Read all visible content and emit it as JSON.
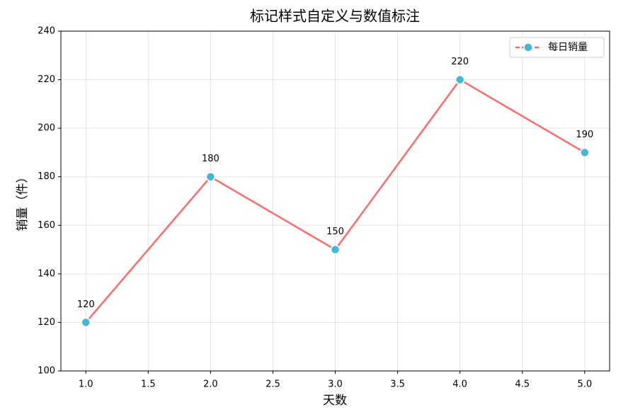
{
  "chart_data": {
    "type": "line",
    "title": "标记样式自定义与数值标注",
    "x_label": "天数",
    "y_label": "销量（件）",
    "x": [
      1,
      2,
      3,
      4,
      5
    ],
    "series": [
      {
        "name": "每日销量",
        "color": "#ff6b6b",
        "marker_color": "#45b7d1",
        "values": [
          120,
          180,
          150,
          220,
          190
        ]
      }
    ],
    "xlim": [
      0.8,
      5.2
    ],
    "xticks": [
      {
        "value": 1,
        "label": "1.0"
      },
      {
        "value": 1.5,
        "label": "1.5"
      },
      {
        "value": 2,
        "label": "2.0"
      },
      {
        "value": 2.5,
        "label": "2.5"
      },
      {
        "value": 3,
        "label": "3.0"
      },
      {
        "value": 3.5,
        "label": "3.5"
      },
      {
        "value": 4,
        "label": "4.0"
      },
      {
        "value": 4.5,
        "label": "4.5"
      },
      {
        "value": 5,
        "label": "5.0"
      }
    ],
    "ylim": [
      100,
      240
    ],
    "yticks": [
      100,
      120,
      140,
      160,
      180,
      200,
      220,
      240
    ],
    "grid": true,
    "legend": "upper right"
  }
}
